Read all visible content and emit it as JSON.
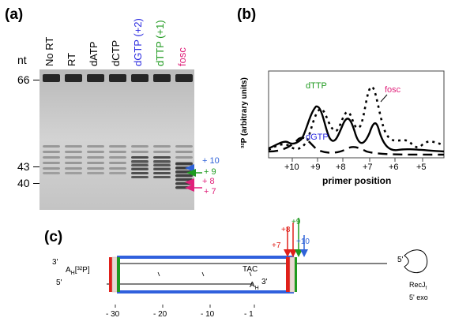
{
  "panel_a": {
    "label": "(a)",
    "nt_label": "nt",
    "lanes": [
      "No RT",
      "RT",
      "dATP",
      "dCTP",
      "dGTP (+2)",
      "dTTP (+1)",
      "fosc"
    ],
    "lane_colors": [
      "#000000",
      "#000000",
      "#000000",
      "#000000",
      "#2a2ae0",
      "#1f9a1f",
      "#e0207a"
    ],
    "markers": [
      "66",
      "43",
      "40"
    ],
    "arrows": [
      {
        "label": "+ 10",
        "color": "#2f62d8"
      },
      {
        "label": "+ 9",
        "color": "#1f9a1f"
      },
      {
        "label": "+ 8",
        "color": "#e0207a"
      },
      {
        "label": "+ 7",
        "color": "#e0207a"
      }
    ]
  },
  "panel_b": {
    "label": "(b)",
    "ylabel": "³²P (arbitrary units)",
    "xlabel": "primer position",
    "tick_labels": [
      "+10",
      "+9",
      "+8",
      "+7",
      "+6",
      "+5"
    ],
    "annotations": [
      {
        "text": "dTTP",
        "color": "#1f9a1f"
      },
      {
        "text": "dGTP",
        "color": "#2a2ae0"
      },
      {
        "text": "fosc",
        "color": "#e0207a"
      }
    ]
  },
  "panel_c": {
    "label": "(c)",
    "top_strand_left": "3'",
    "top_strand_seq": "A",
    "top_strand_sub": "H",
    "top_strand_label": "[³²P]",
    "bottom_strand_left": "5'",
    "tac": "TAC",
    "bottom_three": "3'",
    "bottom_ah": "A",
    "bottom_ah_sub": "H",
    "right_five": "5'",
    "recj": "RecJ",
    "recj_sub": "f",
    "recj_line2": "5' exo",
    "positions": [
      "- 30",
      "- 20",
      "- 10",
      "- 1"
    ],
    "arrows": [
      {
        "label": "+7",
        "color": "#e0201a"
      },
      {
        "label": "+8",
        "color": "#e0201a"
      },
      {
        "label": "+9",
        "color": "#1f9a1f"
      },
      {
        "label": "+10",
        "color": "#2f62d8"
      }
    ]
  }
}
